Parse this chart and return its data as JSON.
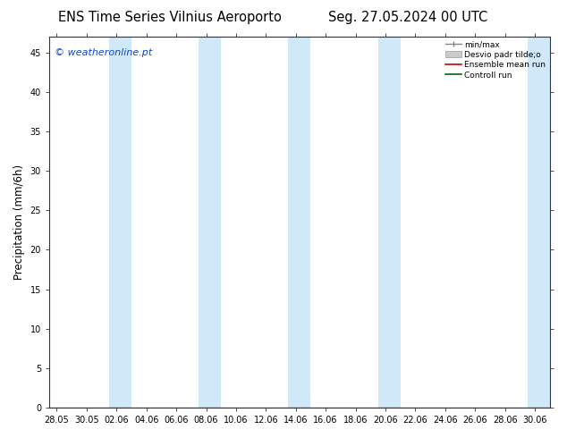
{
  "title_left": "ENS Time Series Vilnius Aeroporto",
  "title_right": "Seg. 27.05.2024 00 UTC",
  "ylabel": "Precipitation (mm/6h)",
  "watermark": "© weatheronline.pt",
  "watermark_color": "#1144cc",
  "ylim": [
    0,
    47
  ],
  "yticks": [
    0,
    5,
    10,
    15,
    20,
    25,
    30,
    35,
    40,
    45
  ],
  "xtick_labels": [
    "28.05",
    "30.05",
    "02.06",
    "04.06",
    "06.06",
    "08.06",
    "10.06",
    "12.06",
    "14.06",
    "16.06",
    "18.06",
    "20.06",
    "22.06",
    "24.06",
    "26.06",
    "28.06",
    "30.06"
  ],
  "xtick_positions": [
    0,
    2,
    4,
    6,
    8,
    10,
    12,
    14,
    16,
    18,
    20,
    22,
    24,
    26,
    28,
    30,
    32
  ],
  "xlim": [
    -0.5,
    33.0
  ],
  "band_color": "#d0e8f8",
  "band_alpha": 1.0,
  "bands_x": [
    [
      3.5,
      5.0
    ],
    [
      9.5,
      11.0
    ],
    [
      15.5,
      17.0
    ],
    [
      21.5,
      23.0
    ],
    [
      31.5,
      33.1
    ]
  ],
  "legend_labels": [
    "min/max",
    "Desvio padr tilde;o",
    "Ensemble mean run",
    "Controll run"
  ],
  "legend_colors_handle": [
    "#888888",
    "#bbbbbb",
    "#cc0000",
    "#006600"
  ],
  "bg_color": "#ffffff",
  "plot_bg_color": "#ffffff",
  "axis_color": "#333333",
  "title_fontsize": 10.5,
  "tick_fontsize": 7,
  "ylabel_fontsize": 8.5
}
